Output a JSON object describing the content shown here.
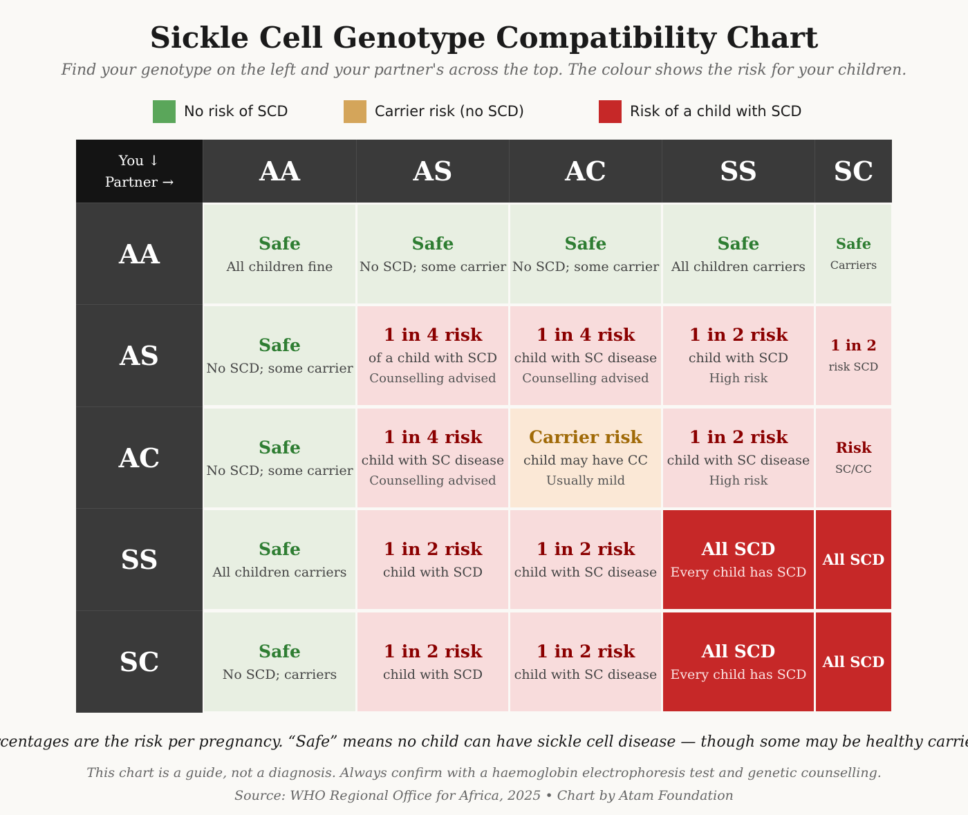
{
  "header": {
    "title": "Sickle Cell Genotype Compatibility Chart",
    "subtitle": "Find your genotype on the left and your partner's across the top. The colour shows the risk for your children."
  },
  "legend": [
    {
      "label": "No risk of SCD",
      "color": "#5aa65a"
    },
    {
      "label": "Carrier risk (no SCD)",
      "color": "#d4a55a"
    },
    {
      "label": "Risk of a child with SCD",
      "color": "#c62828"
    }
  ],
  "corner": {
    "line1": "You ↓",
    "line2": "Partner →"
  },
  "chart_data": {
    "type": "table",
    "columns": [
      "AA",
      "AS",
      "AC",
      "SS",
      "SC"
    ],
    "rows": [
      "AA",
      "AS",
      "AC",
      "SS",
      "SC"
    ],
    "cells": [
      [
        {
          "level": "safe",
          "label": "Safe",
          "line1": "All children fine",
          "line2": ""
        },
        {
          "level": "safe",
          "label": "Safe",
          "line1": "No SCD; some carrier",
          "line2": ""
        },
        {
          "level": "safe",
          "label": "Safe",
          "line1": "No SCD; some carrier",
          "line2": ""
        },
        {
          "level": "safe",
          "label": "Safe",
          "line1": "All children carriers",
          "line2": ""
        },
        {
          "level": "safe",
          "label": "Safe",
          "line1": "Carriers",
          "line2": ""
        }
      ],
      [
        {
          "level": "safe",
          "label": "Safe",
          "line1": "No SCD; some carrier",
          "line2": ""
        },
        {
          "level": "risk",
          "label": "1 in 4 risk",
          "line1": "of a child with SCD",
          "line2": "Counselling advised"
        },
        {
          "level": "risk",
          "label": "1 in 4 risk",
          "line1": "child with SC disease",
          "line2": "Counselling advised"
        },
        {
          "level": "risk",
          "label": "1 in 2 risk",
          "line1": "child with SCD",
          "line2": "High risk"
        },
        {
          "level": "risk",
          "label": "1 in 2",
          "line1": "risk SCD",
          "line2": ""
        }
      ],
      [
        {
          "level": "safe",
          "label": "Safe",
          "line1": "No SCD; some carrier",
          "line2": ""
        },
        {
          "level": "risk",
          "label": "1 in 4 risk",
          "line1": "child with SC disease",
          "line2": "Counselling advised"
        },
        {
          "level": "carrier",
          "label": "Carrier risk",
          "line1": "child may have CC",
          "line2": "Usually mild"
        },
        {
          "level": "risk",
          "label": "1 in 2 risk",
          "line1": "child with SC disease",
          "line2": "High risk"
        },
        {
          "level": "risk",
          "label": "Risk",
          "line1": "SC/CC",
          "line2": ""
        }
      ],
      [
        {
          "level": "safe",
          "label": "Safe",
          "line1": "All children carriers",
          "line2": ""
        },
        {
          "level": "risk",
          "label": "1 in 2 risk",
          "line1": "child with SCD",
          "line2": ""
        },
        {
          "level": "risk",
          "label": "1 in 2 risk",
          "line1": "child with SC disease",
          "line2": ""
        },
        {
          "level": "all",
          "label": "All SCD",
          "line1": "Every child has SCD",
          "line2": ""
        },
        {
          "level": "all",
          "label": "All SCD",
          "line1": "",
          "line2": ""
        }
      ],
      [
        {
          "level": "safe",
          "label": "Safe",
          "line1": "No SCD; carriers",
          "line2": ""
        },
        {
          "level": "risk",
          "label": "1 in 2 risk",
          "line1": "child with SCD",
          "line2": ""
        },
        {
          "level": "risk",
          "label": "1 in 2 risk",
          "line1": "child with SC disease",
          "line2": ""
        },
        {
          "level": "all",
          "label": "All SCD",
          "line1": "Every child has SCD",
          "line2": ""
        },
        {
          "level": "all",
          "label": "All SCD",
          "line1": "",
          "line2": ""
        }
      ]
    ]
  },
  "footer": {
    "note": "Percentages are the risk per pregnancy. “Safe” means no child can have sickle cell disease — though some may be healthy carriers.",
    "disclaimer": "This chart is a guide, not a diagnosis. Always confirm with a haemoglobin electrophoresis test and genetic counselling.",
    "source": "Source: WHO Regional Office for Africa, 2025 • Chart by Atam Foundation"
  }
}
